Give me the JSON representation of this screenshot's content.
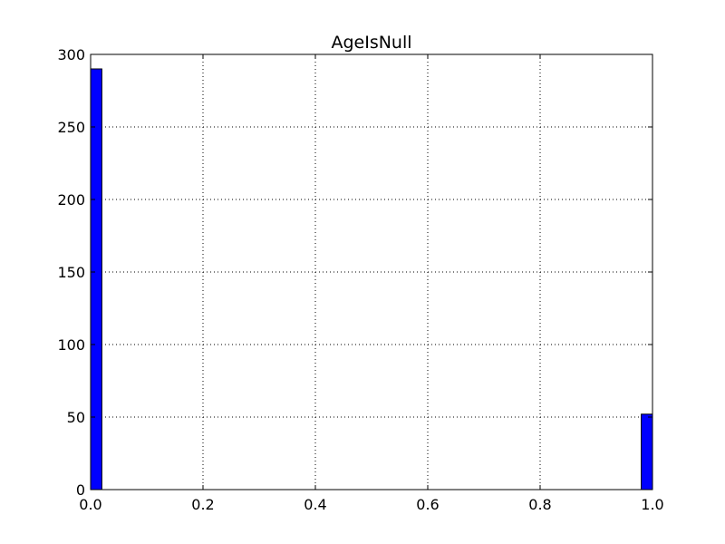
{
  "chart_data": {
    "type": "bar",
    "title": "AgeIsNull",
    "xlabel": "",
    "ylabel": "",
    "xlim": [
      0.0,
      1.0
    ],
    "ylim": [
      0,
      300
    ],
    "xticks": [
      "0.0",
      "0.2",
      "0.4",
      "0.6",
      "0.8",
      "1.0"
    ],
    "yticks": [
      "0",
      "50",
      "100",
      "150",
      "200",
      "250",
      "300"
    ],
    "grid": true,
    "legend": "none",
    "bars": [
      {
        "x_start": 0.0,
        "x_end": 0.02,
        "value": 290
      },
      {
        "x_start": 0.98,
        "x_end": 1.0,
        "value": 52
      }
    ],
    "bar_color": "#0000ff",
    "edge_color": "#000000"
  }
}
